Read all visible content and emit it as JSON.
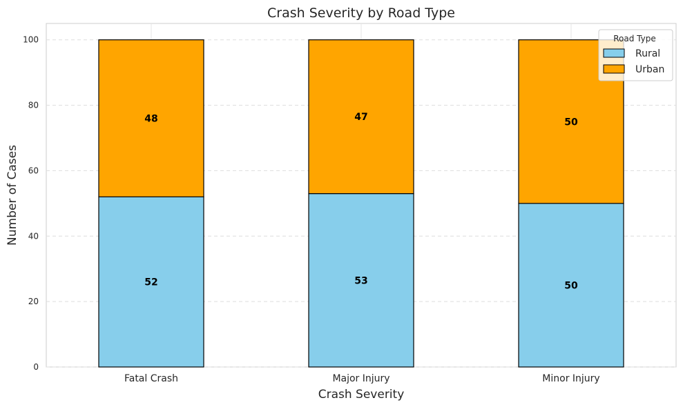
{
  "chart_data": {
    "type": "bar",
    "stacked": true,
    "title": "Crash Severity by Road Type",
    "xlabel": "Crash Severity",
    "ylabel": "Number of Cases",
    "categories": [
      "Fatal Crash",
      "Major Injury",
      "Minor Injury"
    ],
    "series": [
      {
        "name": "Rural",
        "values": [
          52,
          53,
          50
        ],
        "color": "#87CEEB"
      },
      {
        "name": "Urban",
        "values": [
          48,
          47,
          50
        ],
        "color": "#FFA500"
      }
    ],
    "ylim": [
      0,
      105
    ],
    "yticks": [
      0,
      20,
      40,
      60,
      80,
      100
    ],
    "grid": "y-dashed",
    "legend": {
      "title": "Road Type",
      "position": "top-right"
    }
  }
}
